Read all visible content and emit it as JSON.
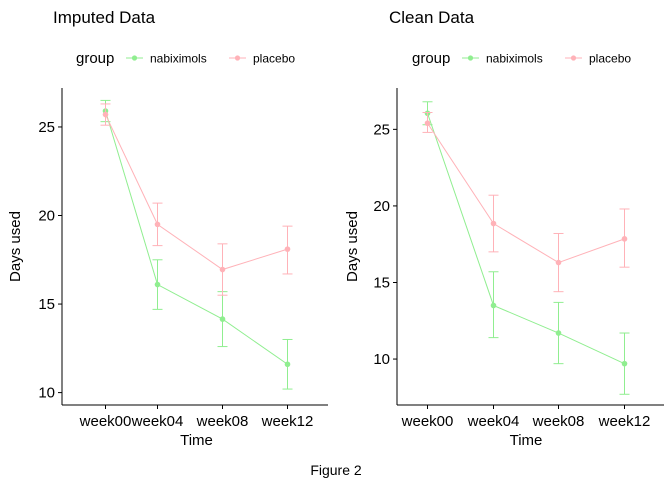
{
  "caption": "Figure 2",
  "colors": {
    "nabiximols": "#90EE90",
    "placeholder": "",
    "placebo": "#FFB2B8",
    "axis": "#000000"
  },
  "chart_data": [
    {
      "type": "line",
      "title": "Imputed Data",
      "legend": {
        "title": "group",
        "position": "top-left",
        "entries": [
          "nabiximols",
          "placebo"
        ]
      },
      "xlabel": "Time",
      "ylabel": "Days used",
      "categories": [
        "week00",
        "week04",
        "week08",
        "week12"
      ],
      "ylim": [
        9.3,
        27.2
      ],
      "yticks": [
        10,
        15,
        20,
        25
      ],
      "grid": false,
      "series": [
        {
          "name": "nabiximols",
          "values": [
            25.9,
            16.1,
            14.15,
            11.6
          ],
          "err_low": [
            25.3,
            14.7,
            12.6,
            10.2
          ],
          "err_high": [
            26.5,
            17.5,
            15.7,
            13.0
          ]
        },
        {
          "name": "placebo",
          "values": [
            25.7,
            19.5,
            16.95,
            18.1
          ],
          "err_low": [
            25.1,
            18.3,
            15.5,
            16.7
          ],
          "err_high": [
            26.3,
            20.7,
            18.4,
            19.4
          ]
        }
      ]
    },
    {
      "type": "line",
      "title": "Clean Data",
      "legend": {
        "title": "group",
        "position": "top-left",
        "entries": [
          "nabiximols",
          "placebo"
        ]
      },
      "xlabel": "Time",
      "ylabel": "Days used",
      "categories": [
        "week00",
        "week04",
        "week08",
        "week12"
      ],
      "ylim": [
        7.0,
        27.7
      ],
      "yticks": [
        10,
        15,
        20,
        25
      ],
      "grid": false,
      "series": [
        {
          "name": "nabiximols",
          "values": [
            26.05,
            13.5,
            11.7,
            9.7
          ],
          "err_low": [
            25.3,
            11.4,
            9.7,
            7.7
          ],
          "err_high": [
            26.8,
            15.7,
            13.7,
            11.7
          ]
        },
        {
          "name": "placebo",
          "values": [
            25.4,
            18.85,
            16.3,
            17.85
          ],
          "err_low": [
            24.8,
            17.0,
            14.4,
            16.0
          ],
          "err_high": [
            26.1,
            20.7,
            18.2,
            19.8
          ]
        }
      ]
    }
  ]
}
